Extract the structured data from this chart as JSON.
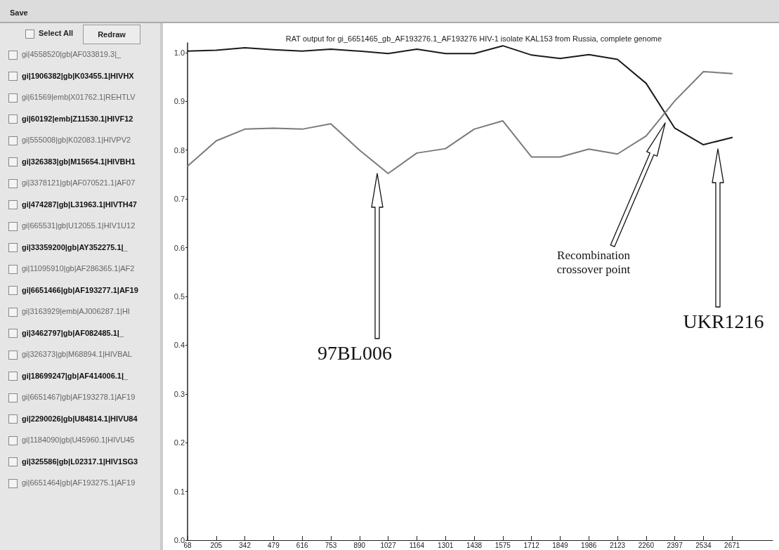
{
  "chart_data": {
    "type": "line",
    "title": "RAT output for gi_6651465_gb_AF193276.1_AF193276 HIV-1 isolate KAL153 from Russia, complete genome",
    "x": [
      68,
      205,
      342,
      479,
      616,
      753,
      890,
      1027,
      1164,
      1301,
      1438,
      1575,
      1712,
      1849,
      1986,
      2123,
      2260,
      2397,
      2534,
      2671
    ],
    "series": [
      {
        "color": "#1a1a1a",
        "values": [
          1.003,
          1.005,
          1.01,
          1.006,
          1.003,
          1.007,
          1.003,
          0.998,
          1.007,
          0.998,
          0.998,
          1.014,
          0.995,
          0.988,
          0.996,
          0.986,
          0.937,
          0.845,
          0.811,
          0.826
        ]
      },
      {
        "color": "#7a7a7a",
        "values": [
          0.767,
          0.819,
          0.843,
          0.845,
          0.843,
          0.854,
          0.8,
          0.752,
          0.794,
          0.803,
          0.843,
          0.86,
          0.786,
          0.786,
          0.802,
          0.792,
          0.829,
          0.901,
          0.961,
          0.957
        ]
      }
    ],
    "xlim": [
      68,
      2865
    ],
    "xticks": [
      68,
      205,
      342,
      479,
      616,
      753,
      890,
      1027,
      1164,
      1301,
      1438,
      1575,
      1712,
      1849,
      1986,
      2123,
      2260,
      2397,
      2534,
      2671
    ],
    "ylim": [
      0,
      1.02
    ],
    "yticks": [
      {
        "value": 0,
        "label": "0.0"
      },
      0.1,
      0.2,
      0.3,
      0.4,
      0.5,
      0.6,
      0.7,
      0.8,
      0.9,
      {
        "value": 1,
        "label": "1.0"
      }
    ],
    "grid": false,
    "marker": "none",
    "line_style": "solid",
    "annotations": [
      "97BL006",
      "Recombination\ncrossover point",
      "UKR1216",
      "Save",
      "Select All",
      "Redraw",
      "gi|4558520|gb|AF033819.3|_",
      "gi|1906382|gb|K03455.1|HIVHX",
      "gi|61569|emb|X01762.1|REHTLV",
      "gi|60192|emb|Z11530.1|HIVF12",
      "gi|555008|gb|K02083.1|HIVPV2",
      "gi|326383|gb|M15654.1|HIVBH1",
      "gi|3378121|gb|AF070521.1|AF07",
      "gi|474287|gb|L31963.1|HIVTH47",
      "gi|665531|gb|U12055.1|HIV1U12",
      "gi|33359200|gb|AY352275.1|_",
      "gi|11095910|gb|AF286365.1|AF2",
      "gi|6651466|gb|AF193277.1|AF19",
      "gi|3163929|emb|AJ006287.1|HI",
      "gi|3462797|gb|AF082485.1|_",
      "gi|326373|gb|M68894.1|HIVBAL",
      "gi|18699247|gb|AF414006.1|_",
      "gi|6651467|gb|AF193278.1|AF19",
      "gi|2290026|gb|U84814.1|HIVU84",
      "gi|1184090|gb|U45960.1|HIVU45",
      "gi|325586|gb|L02317.1|HIV1SG3",
      "gi|6651464|gb|AF193275.1|AF19"
    ]
  }
}
